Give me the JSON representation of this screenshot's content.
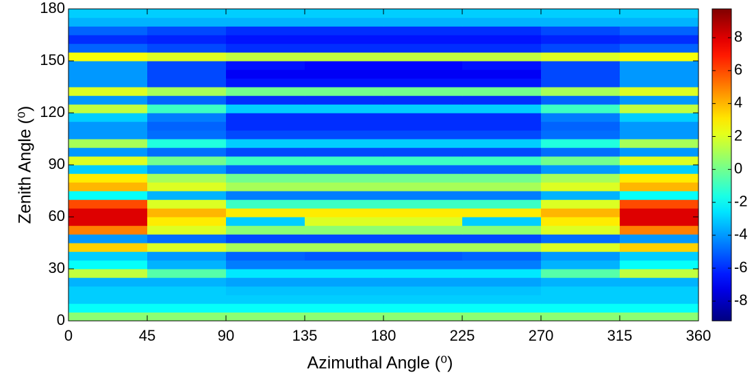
{
  "chart_data": {
    "type": "heatmap",
    "xlabel": "Azimuthal Angle (⁰)",
    "ylabel": "Zenith Angle (⁰)",
    "colormap": "jet",
    "x": [
      22.5,
      67.5,
      112.5,
      157.5,
      202.5,
      247.5,
      292.5,
      337.5
    ],
    "y": [
      2.5,
      7.5,
      12.5,
      17.5,
      22.5,
      27.5,
      32.5,
      37.5,
      42.5,
      47.5,
      52.5,
      57.5,
      62.5,
      67.5,
      72.5,
      77.5,
      82.5,
      87.5,
      92.5,
      97.5,
      102.5,
      107.5,
      112.5,
      117.5,
      122.5,
      127.5,
      132.5,
      137.5,
      142.5,
      147.5,
      152.5,
      157.5,
      162.5,
      167.5,
      172.5,
      177.5
    ],
    "values": [
      [
        0.5,
        0.5,
        0.5,
        0.5,
        0.5,
        0.5,
        0.5,
        0.5
      ],
      [
        -2,
        -2,
        -2,
        -2,
        -2,
        -2,
        -2,
        -2
      ],
      [
        -3,
        -3,
        -3,
        -3,
        -3,
        -3,
        -3,
        -3
      ],
      [
        -3,
        -3,
        -3.2,
        -3.2,
        -3.2,
        -3.2,
        -3,
        -3
      ],
      [
        -3.5,
        -3.5,
        -3.8,
        -3.8,
        -3.8,
        -3.8,
        -3.5,
        -3.5
      ],
      [
        1.5,
        -0.5,
        -2.5,
        -2.5,
        -2.5,
        -2.5,
        -0.5,
        1.5
      ],
      [
        -2,
        -3.5,
        -4.5,
        -4.5,
        -4.5,
        -4.5,
        -3.5,
        -2
      ],
      [
        -3,
        -4,
        -5,
        -5.2,
        -5.2,
        -5,
        -4,
        -3
      ],
      [
        3.5,
        2,
        1,
        1,
        1,
        1,
        2,
        3.5
      ],
      [
        -4,
        -4.8,
        -5.5,
        -5.5,
        -5.5,
        -5.5,
        -4.8,
        -4
      ],
      [
        5,
        2,
        0.5,
        0.5,
        0.5,
        0.5,
        2,
        5
      ],
      [
        8,
        3,
        -3,
        2,
        2,
        -3,
        3,
        8
      ],
      [
        8,
        4,
        3,
        3,
        3,
        3,
        4,
        8
      ],
      [
        6,
        2,
        -1,
        -1,
        -1,
        -1,
        2,
        6
      ],
      [
        -2,
        -3.5,
        -4.5,
        -4.5,
        -4.5,
        -4.5,
        -3.5,
        -2
      ],
      [
        4,
        2,
        1,
        1,
        1,
        1,
        2,
        4
      ],
      [
        3,
        1,
        0,
        0,
        0,
        0,
        1,
        3
      ],
      [
        -3,
        -4,
        -5,
        -5,
        -5,
        -5,
        -4,
        -3
      ],
      [
        2,
        0,
        -1,
        -1,
        -1,
        -1,
        0,
        2
      ],
      [
        -4,
        -4.8,
        -5.5,
        -5.5,
        -5.5,
        -5.5,
        -4.8,
        -4
      ],
      [
        1,
        -1.5,
        -3,
        -3,
        -3,
        -3,
        -1.5,
        1
      ],
      [
        -4,
        -4.8,
        -5.5,
        -5.5,
        -5.5,
        -5.5,
        -4.8,
        -4
      ],
      [
        -4,
        -5,
        -6,
        -6,
        -6,
        -6,
        -5,
        -4
      ],
      [
        -3,
        -4.5,
        -6,
        -6,
        -6,
        -6,
        -4.5,
        -3
      ],
      [
        1.5,
        -1,
        -3,
        -3,
        -3,
        -3,
        -1,
        1.5
      ],
      [
        -4,
        -5,
        -6,
        -6,
        -6,
        -6,
        -5,
        -4
      ],
      [
        2,
        1,
        0,
        0,
        0,
        0,
        1,
        2
      ],
      [
        -4,
        -5.5,
        -6.5,
        -6.5,
        -6.5,
        -6.5,
        -5.5,
        -4
      ],
      [
        -4,
        -5.5,
        -7,
        -7,
        -7,
        -7,
        -5.5,
        -4
      ],
      [
        -4,
        -5.5,
        -6.5,
        -6.8,
        -6.8,
        -6.5,
        -5.5,
        -4
      ],
      [
        2.5,
        2,
        1.5,
        1.5,
        1.5,
        1.5,
        2,
        2.5
      ],
      [
        -5,
        -5.5,
        -6,
        -6,
        -6,
        -6,
        -5.5,
        -5
      ],
      [
        -6,
        -6.2,
        -6.5,
        -6.5,
        -6.5,
        -6.5,
        -6.2,
        -6
      ],
      [
        -5,
        -5.5,
        -6,
        -6,
        -6,
        -6,
        -5.5,
        -5
      ],
      [
        -3.5,
        -3.5,
        -3.5,
        -3.5,
        -3.5,
        -3.5,
        -3.5,
        -3.5
      ],
      [
        -3,
        -3,
        -3,
        -3,
        -3,
        -3,
        -3,
        -3
      ]
    ],
    "xlim": [
      0,
      360
    ],
    "ylim": [
      0,
      180
    ],
    "xticks": [
      0,
      45,
      90,
      135,
      180,
      225,
      270,
      315,
      360
    ],
    "yticks": [
      0,
      30,
      60,
      90,
      120,
      150,
      180
    ],
    "clim": [
      -9.2,
      9.75
    ],
    "cticks": [
      -8,
      -6,
      -4,
      -2,
      0,
      2,
      4,
      6,
      8
    ]
  }
}
